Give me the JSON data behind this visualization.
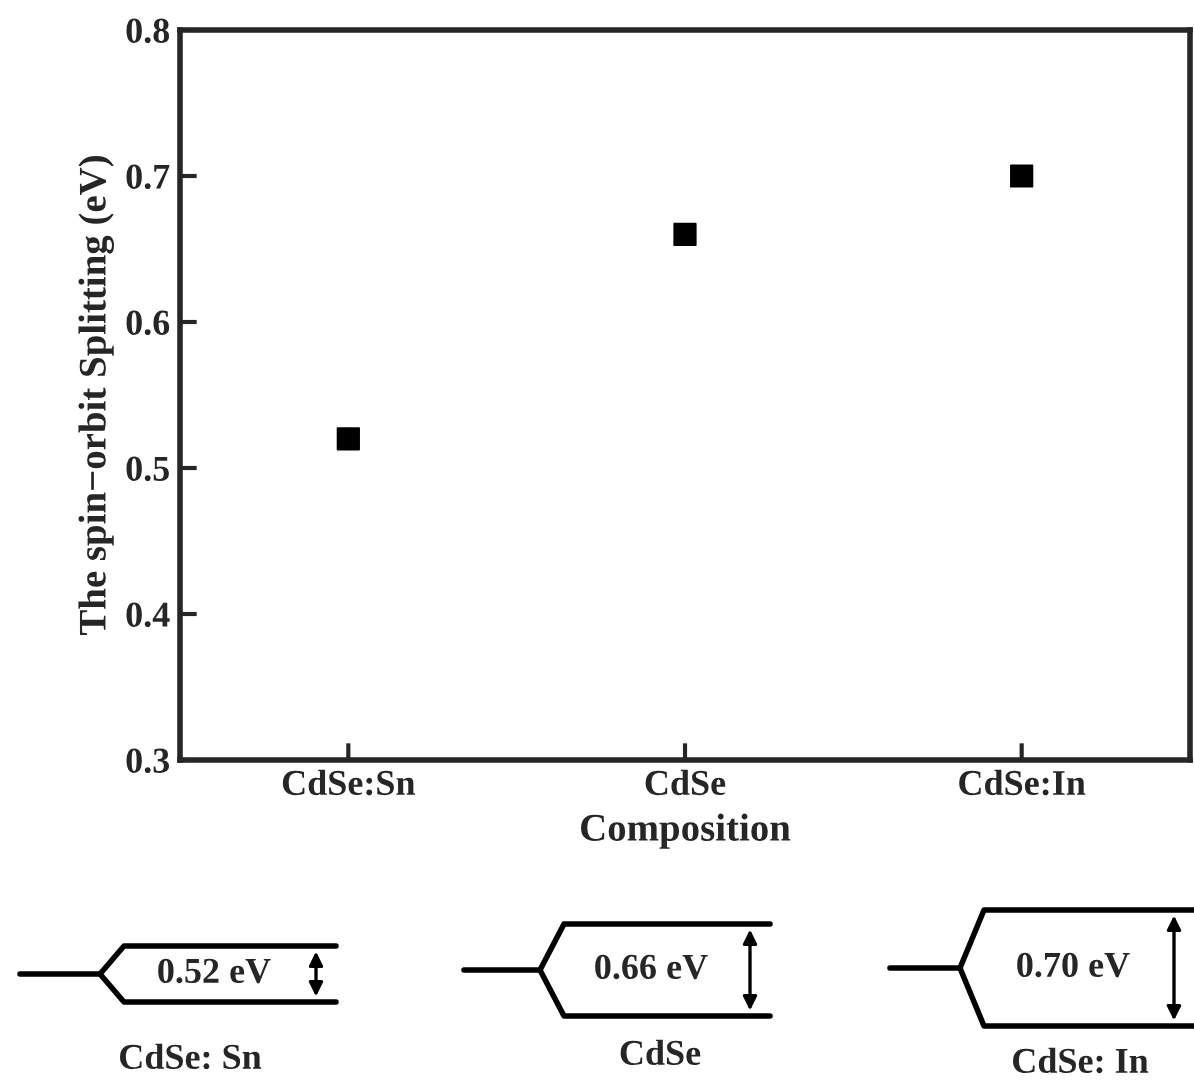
{
  "chart_data": {
    "type": "scatter",
    "xlabel": "Composition",
    "ylabel": "The spin−orbit Splitting (eV)",
    "categories": [
      "CdSe:Sn",
      "CdSe",
      "CdSe:In"
    ],
    "values": [
      0.52,
      0.66,
      0.7
    ],
    "color": "#000000",
    "marker": "square",
    "ylim": [
      0.3,
      0.8
    ],
    "yticks": [
      0.3,
      0.4,
      0.5,
      0.6,
      0.7,
      0.8
    ],
    "grid": false,
    "legend": false,
    "annotations": [
      "0.52 eV",
      "CdSe: Sn",
      "0.66 eV",
      "CdSe",
      "0.70 eV",
      "CdSe: In"
    ]
  }
}
